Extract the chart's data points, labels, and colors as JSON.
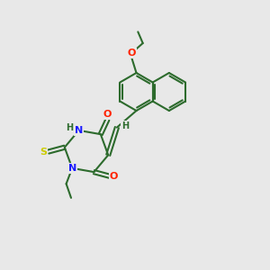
{
  "bg_color": "#e8e8e8",
  "bond_color": "#2d6b2d",
  "atom_colors": {
    "N": "#1a1aff",
    "O": "#ff2200",
    "S": "#cccc00",
    "H": "#2d6b2d"
  },
  "lw": 1.5,
  "figsize": [
    3.0,
    3.0
  ],
  "dpi": 100,
  "xlim": [
    0,
    10
  ],
  "ylim": [
    0,
    10
  ]
}
